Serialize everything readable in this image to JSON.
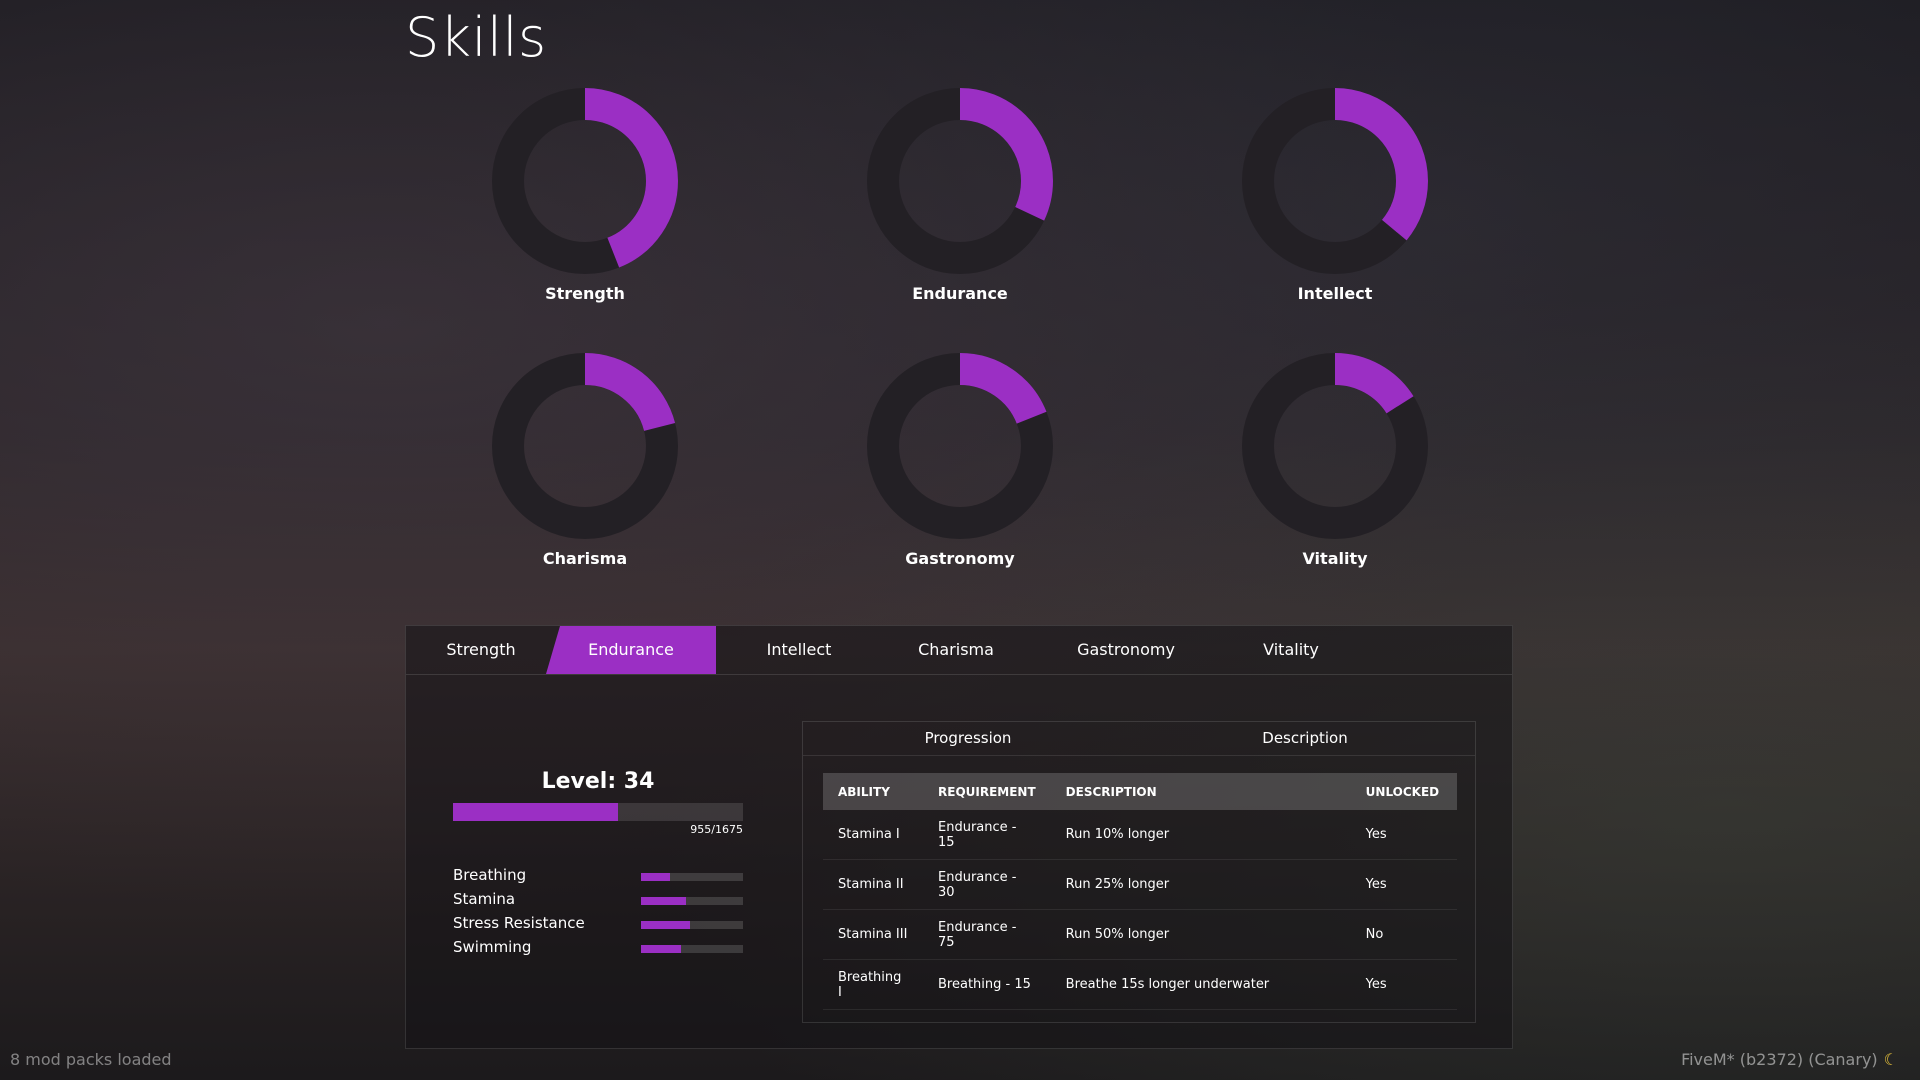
{
  "page": {
    "title": "Skills"
  },
  "skills_chart": {
    "accent": "#9b2fc4",
    "track": "#232025",
    "items": [
      {
        "label": "Strength",
        "progress": 0.44
      },
      {
        "label": "Endurance",
        "progress": 0.32
      },
      {
        "label": "Intellect",
        "progress": 0.36
      },
      {
        "label": "Charisma",
        "progress": 0.21
      },
      {
        "label": "Gastronomy",
        "progress": 0.19
      },
      {
        "label": "Vitality",
        "progress": 0.16
      }
    ]
  },
  "tabs": [
    {
      "label": "Strength",
      "active": false
    },
    {
      "label": "Endurance",
      "active": true
    },
    {
      "label": "Intellect",
      "active": false
    },
    {
      "label": "Charisma",
      "active": false
    },
    {
      "label": "Gastronomy",
      "active": false
    },
    {
      "label": "Vitality",
      "active": false
    }
  ],
  "level": {
    "text": "Level: 34",
    "xp_text": "955/1675",
    "progress": 0.57
  },
  "sub_skills": [
    {
      "label": "Breathing",
      "progress": 0.28
    },
    {
      "label": "Stamina",
      "progress": 0.44
    },
    {
      "label": "Stress Resistance",
      "progress": 0.48
    },
    {
      "label": "Swimming",
      "progress": 0.39
    }
  ],
  "details": {
    "subtabs": [
      "Progression",
      "Description"
    ],
    "columns": [
      "ABILITY",
      "REQUIREMENT",
      "DESCRIPTION",
      "UNLOCKED"
    ],
    "rows": [
      [
        "Stamina I",
        "Endurance - 15",
        "Run 10% longer",
        "Yes"
      ],
      [
        "Stamina II",
        "Endurance - 30",
        "Run 25% longer",
        "Yes"
      ],
      [
        "Stamina III",
        "Endurance - 75",
        "Run 50% longer",
        "No"
      ],
      [
        "Breathing I",
        "Breathing - 15",
        "Breathe 15s longer underwater",
        "Yes"
      ]
    ]
  },
  "footer": {
    "left": "8 mod packs loaded",
    "right": "FiveM* (b2372) (Canary)",
    "moon_icon": "moon-icon"
  }
}
